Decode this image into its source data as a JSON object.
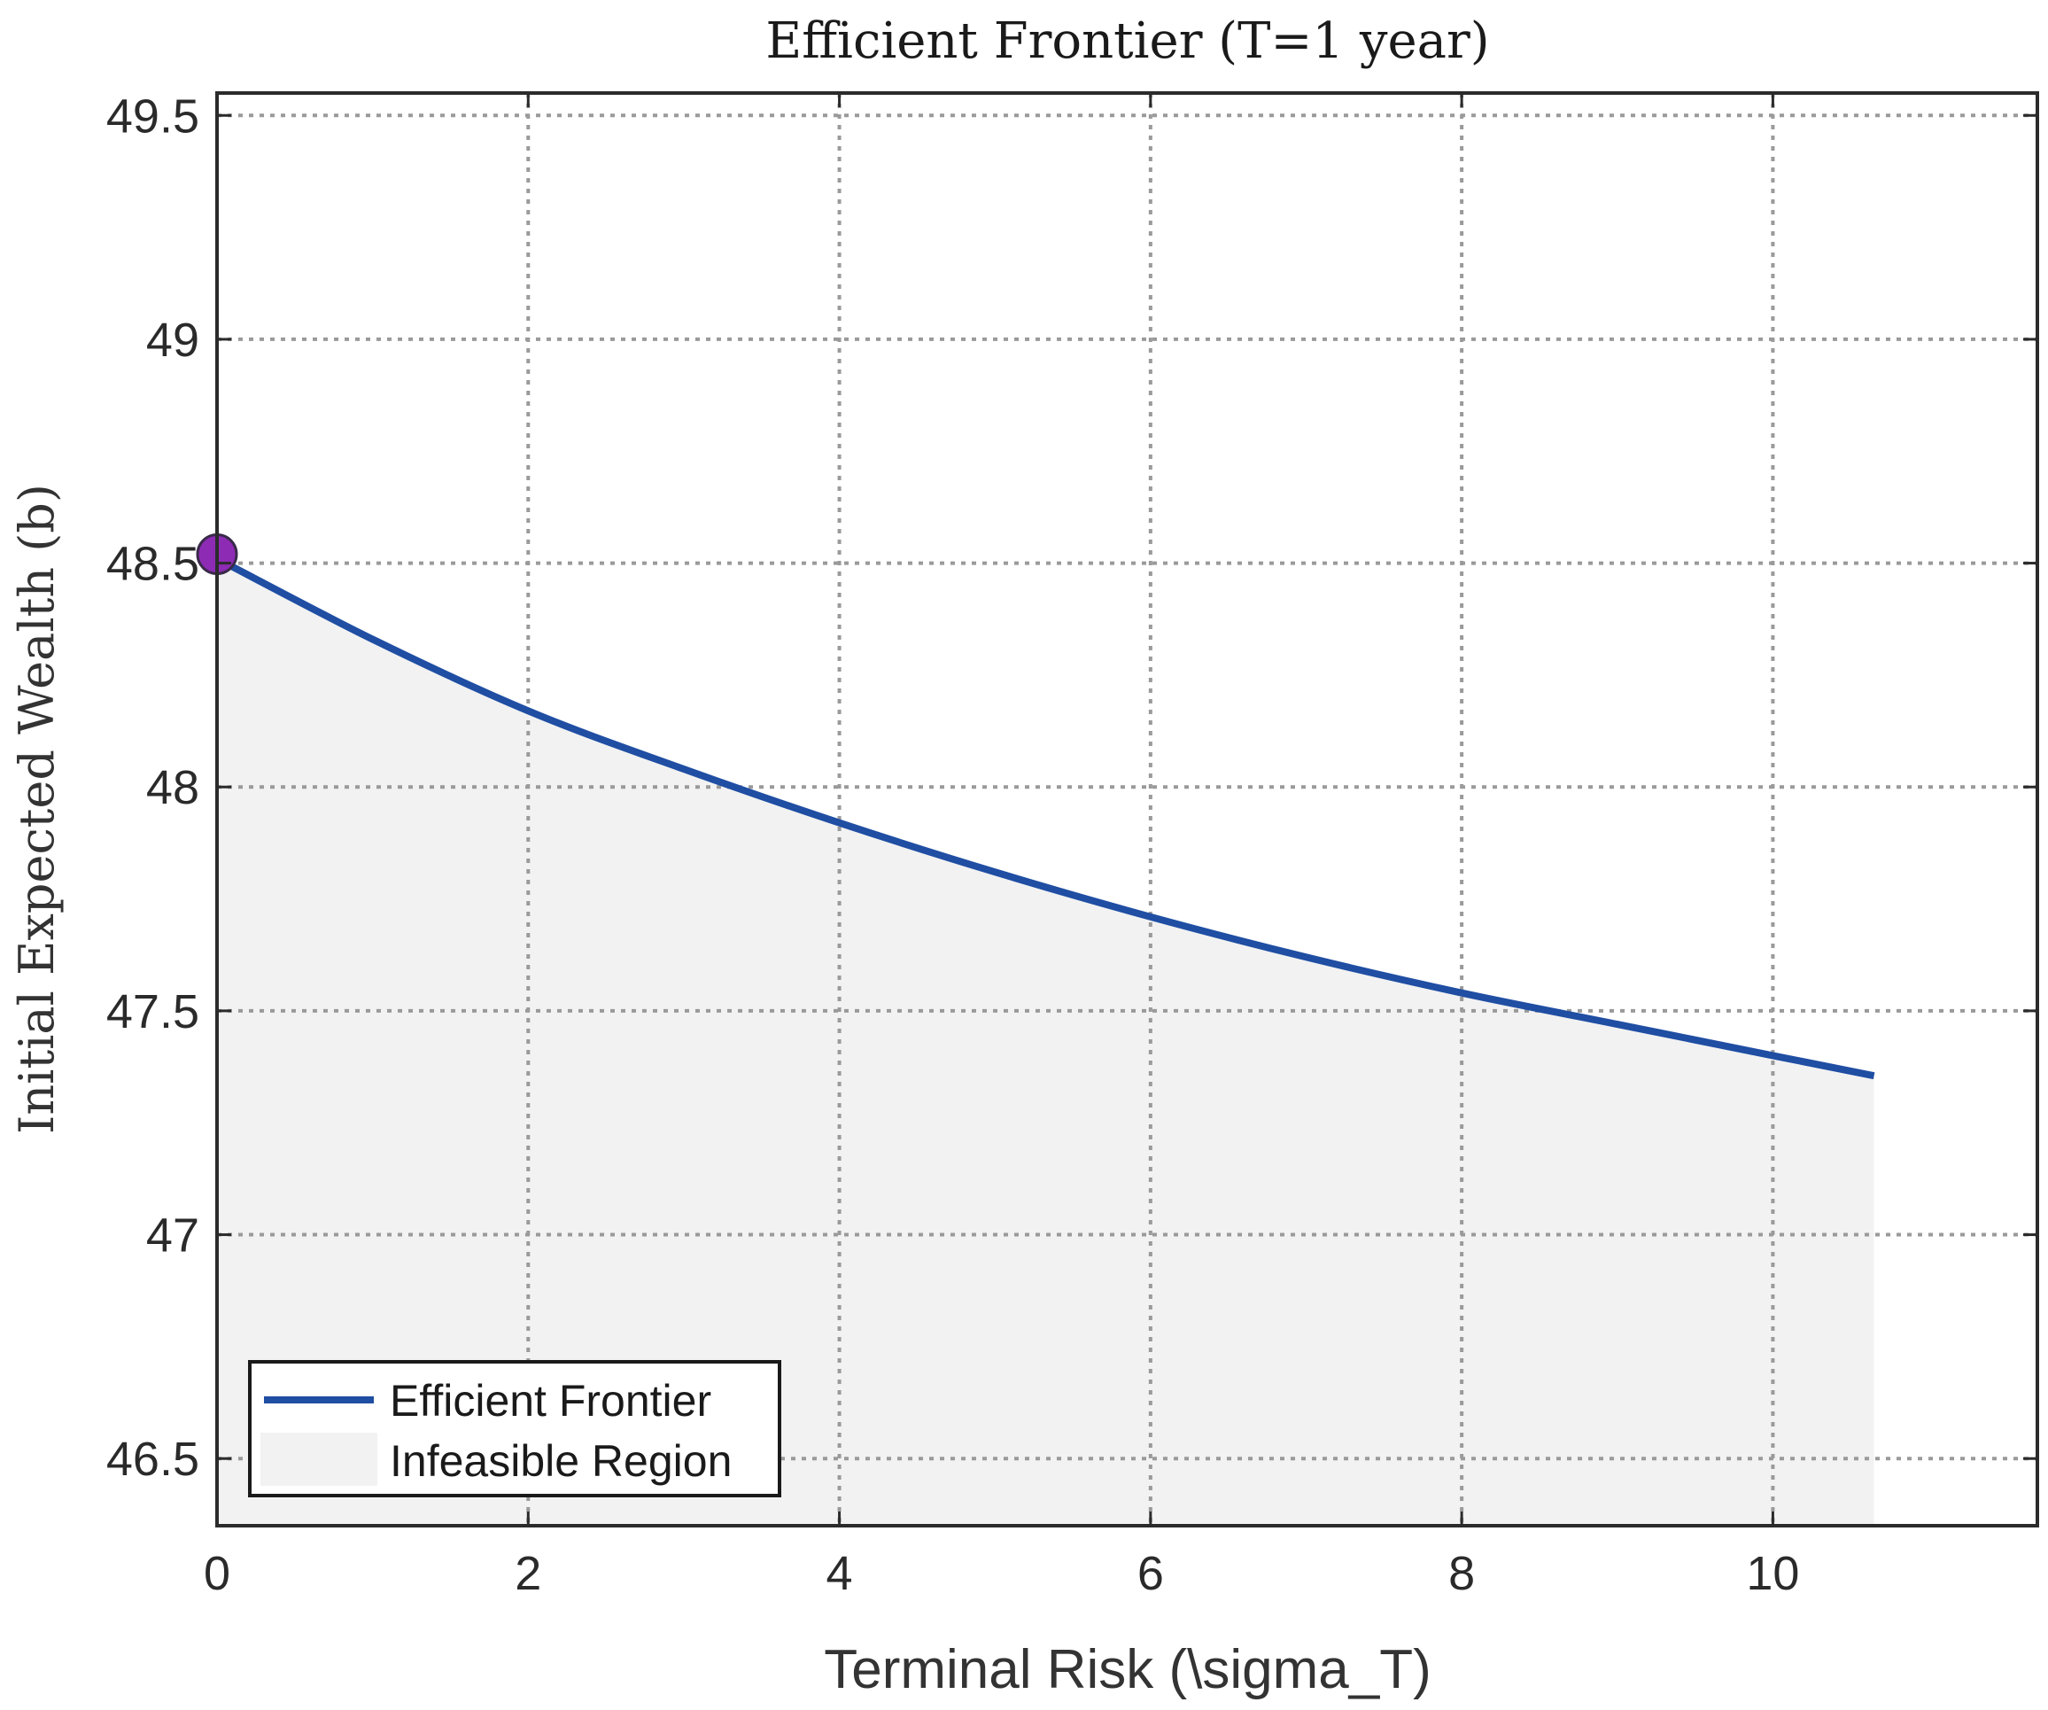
{
  "chart_data": {
    "type": "area",
    "title": "Efficient Frontier (T=1 year)",
    "xlabel": "Terminal Risk (\\sigma_T)",
    "ylabel": "Initial Expected Wealth (b)",
    "xlim": [
      0,
      11.7
    ],
    "ylim": [
      46.35,
      49.55
    ],
    "xticks": [
      0,
      2,
      4,
      6,
      8,
      10
    ],
    "xtick_labels": [
      "0",
      "2",
      "4",
      "6",
      "8",
      "10"
    ],
    "yticks": [
      46.5,
      47,
      47.5,
      48,
      48.5,
      49,
      49.5
    ],
    "ytick_labels": [
      "46.5",
      "47",
      "47.5",
      "48",
      "48.5",
      "49",
      "49.5"
    ],
    "grid": true,
    "series": [
      {
        "name": "Efficient Frontier",
        "kind": "line",
        "color": "#1f4ea3",
        "x": [
          0,
          1,
          2,
          3,
          4,
          5,
          6,
          7,
          8,
          9,
          10,
          10.65
        ],
        "y": [
          48.51,
          48.33,
          48.17,
          48.04,
          47.92,
          47.81,
          47.71,
          47.62,
          47.54,
          47.47,
          47.4,
          47.355
        ]
      },
      {
        "name": "Infeasible Region",
        "kind": "area",
        "color": "#f2f2f2",
        "note_bound": "below frontier"
      }
    ],
    "marker": {
      "x": 0,
      "y": 48.52,
      "color": "#8e2bb5"
    },
    "legend": {
      "location": "bottom-left",
      "entries": [
        "Efficient Frontier",
        "Infeasible Region"
      ]
    }
  }
}
